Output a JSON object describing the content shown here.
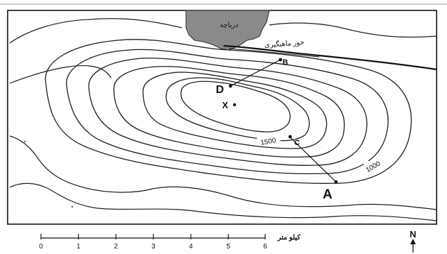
{
  "map": {
    "lake_label": "دریاچه",
    "river_label": "خور ماهیگیری",
    "contour_labels": {
      "c1500": "1500",
      "c1000": "1000"
    },
    "points": {
      "A": "A",
      "B": "B",
      "C": "C",
      "D": "D",
      "X": "X"
    }
  },
  "scale": {
    "unit_label": "کیلو متر",
    "ticks": [
      "0",
      "1",
      "2",
      "3",
      "4",
      "5",
      "6"
    ]
  },
  "north": {
    "label": "N"
  },
  "colors": {
    "lake": "#8a8a8a",
    "ink": "#111111",
    "paper": "#ffffff"
  }
}
